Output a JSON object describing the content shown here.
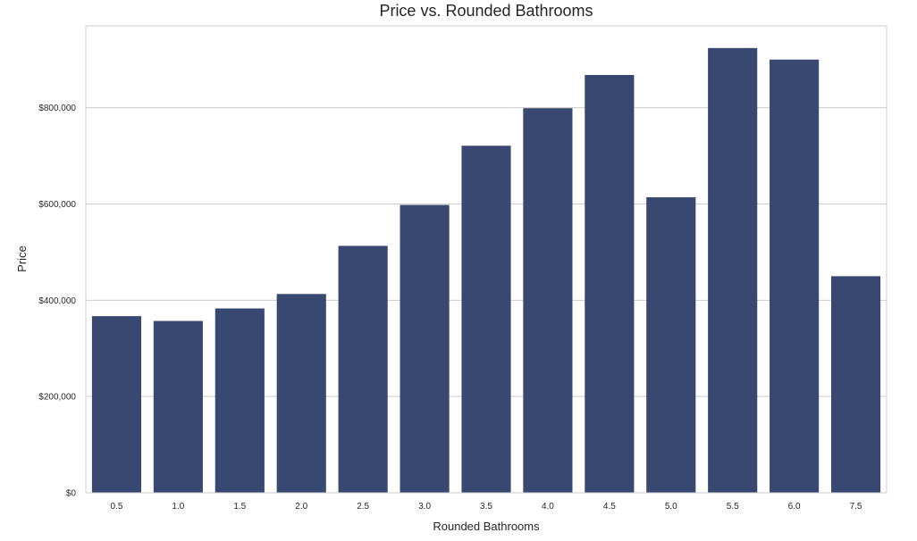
{
  "chart_data": {
    "type": "bar",
    "title": "Price vs. Rounded Bathrooms",
    "xlabel": "Rounded Bathrooms",
    "ylabel": "Price",
    "categories": [
      "0.5",
      "1.0",
      "1.5",
      "2.0",
      "2.5",
      "3.0",
      "3.5",
      "4.0",
      "4.5",
      "5.0",
      "5.5",
      "6.0",
      "7.5"
    ],
    "values": [
      367000,
      357000,
      383000,
      413000,
      513000,
      598000,
      721000,
      799000,
      868000,
      614000,
      924000,
      900000,
      450000
    ],
    "ylim": [
      0,
      970000
    ],
    "yticks": [
      0,
      200000,
      400000,
      600000,
      800000
    ],
    "ytick_labels": [
      "$0",
      "$200,000",
      "$400,000",
      "$600,000",
      "$800,000"
    ],
    "bar_color": "#384870",
    "grid": "y",
    "legend": "none"
  }
}
